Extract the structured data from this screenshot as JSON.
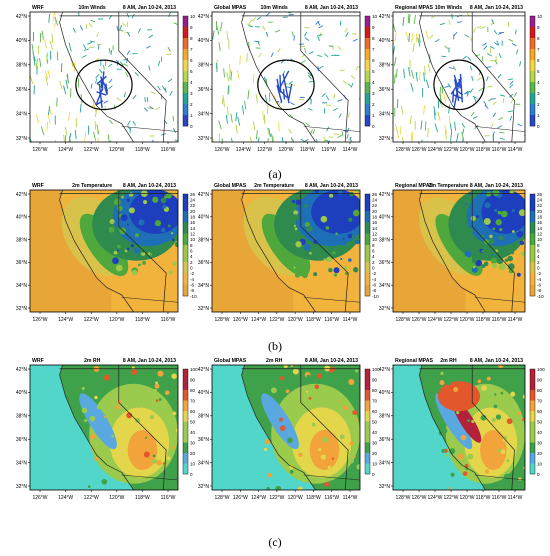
{
  "figure": {
    "rows": [
      {
        "label": "(a)",
        "variable": "10m Winds",
        "time": "8 AM, Jan 10-24, 2013",
        "colorbar_ticks": [
          "10",
          "9",
          "8",
          "7",
          "6",
          "5",
          "4",
          "3",
          "2",
          "1",
          "0"
        ],
        "colors": [
          "#9a1f8e",
          "#d7191c",
          "#f06b25",
          "#f9a825",
          "#f6d743",
          "#b6d84a",
          "#5ab849",
          "#23a596",
          "#2f7ecf",
          "#2548c9",
          "#2a3a9e"
        ],
        "maps": [
          {
            "model": "WRF",
            "x_ticks": [
              "126°W",
              "124°W",
              "122°W",
              "120°W",
              "118°W",
              "116°W"
            ],
            "y_ticks": [
              "42°N",
              "40°N",
              "38°N",
              "36°N",
              "34°N",
              "32°N"
            ],
            "circle": true
          },
          {
            "model": "Global MPAS",
            "x_ticks": [
              "126°W",
              "124°W",
              "122°W",
              "120°W",
              "118°W",
              "116°W",
              "114°W"
            ],
            "y_ticks": [
              "42°N",
              "40°N",
              "38°N",
              "36°N",
              "34°N",
              "32°N"
            ],
            "circle": true
          },
          {
            "model": "Regional MPAS",
            "x_ticks": [
              "128°W",
              "126°W",
              "124°W",
              "122°W",
              "120°W",
              "118°W",
              "116°W",
              "114°W"
            ],
            "y_ticks": [
              "42°N",
              "40°N",
              "38°N",
              "36°N",
              "34°N",
              "32°N"
            ],
            "circle": true
          }
        ]
      },
      {
        "label": "(b)",
        "variable": "2m Temperature",
        "time": "8 AM, Jan 10-24, 2013",
        "colorbar_ticks": [
          "26",
          "24",
          "22",
          "20",
          "18",
          "16",
          "14",
          "12",
          "10",
          "8",
          "6",
          "4",
          "2",
          "0",
          "-2",
          "-4",
          "-6",
          "-8",
          "-10"
        ],
        "colors": [
          "#e9a638",
          "#f2b33d",
          "#d9c24a",
          "#9bc846",
          "#4fa83b",
          "#2f8a4e",
          "#1e6fb6",
          "#1d3fbd"
        ],
        "maps": [
          {
            "model": "WRF",
            "x_ticks": [
              "126°W",
              "124°W",
              "122°W",
              "120°W",
              "118°W",
              "116°W"
            ],
            "y_ticks": [
              "42°N",
              "40°N",
              "38°N",
              "36°N",
              "34°N",
              "32°N"
            ]
          },
          {
            "model": "Global MPAS",
            "x_ticks": [
              "128°W",
              "126°W",
              "124°W",
              "122°W",
              "120°W",
              "118°W",
              "116°W",
              "114°W"
            ],
            "y_ticks": [
              "42°N",
              "40°N",
              "38°N",
              "36°N",
              "34°N",
              "32°N"
            ]
          },
          {
            "model": "Regional MPAS",
            "x_ticks": [
              "128°W",
              "126°W",
              "124°W",
              "122°W",
              "120°W",
              "118°W",
              "116°W",
              "114°W"
            ],
            "y_ticks": [
              "42°N",
              "40°N",
              "38°N",
              "36°N",
              "34°N",
              "32°N"
            ]
          }
        ]
      },
      {
        "label": "(c)",
        "variable": "2m RH",
        "time": "8 AM, Jan 10-24, 2013",
        "colorbar_ticks": [
          "100",
          "90",
          "80",
          "70",
          "60",
          "50",
          "40",
          "30",
          "20",
          "10",
          "0"
        ],
        "colors": [
          "#52d6c9",
          "#5aa8e0",
          "#3fa14a",
          "#9bcb4d",
          "#e3d64a",
          "#f2a33a",
          "#e2572b",
          "#b3213a"
        ],
        "maps": [
          {
            "model": "WRF",
            "x_ticks": [
              "126°W",
              "124°W",
              "122°W",
              "120°W",
              "118°W",
              "116°W"
            ],
            "y_ticks": [
              "42°N",
              "40°N",
              "38°N",
              "36°N",
              "34°N",
              "32°N"
            ]
          },
          {
            "model": "Global MPAS",
            "x_ticks": [
              "128°W",
              "126°W",
              "124°W",
              "122°W",
              "120°W",
              "118°W",
              "116°W",
              "114°W"
            ],
            "y_ticks": [
              "42°N",
              "40°N",
              "38°N",
              "36°N",
              "34°N",
              "32°N"
            ]
          },
          {
            "model": "Regional MPAS",
            "x_ticks": [
              "128°W",
              "126°W",
              "124°W",
              "122°W",
              "120°W",
              "118°W",
              "116°W",
              "114°W"
            ],
            "y_ticks": [
              "42°N",
              "40°N",
              "38°N",
              "36°N",
              "34°N",
              "32°N"
            ]
          }
        ]
      }
    ]
  }
}
